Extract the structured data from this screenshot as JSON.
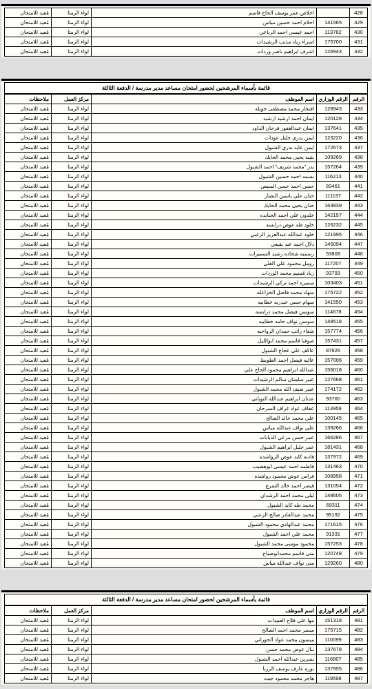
{
  "tableHeaders": {
    "serial": "الرقم",
    "minNo": "الرقم الوزاري",
    "name": "اسم الموظف",
    "center": "مركز العمل",
    "notes": "ملاحظات"
  },
  "centerValue": "لواء الرمثا",
  "notesValue": "مُعيد للامتحان",
  "listTitle": "قائمة بأسماء المرشحين لحضور امتحان مساعد مدير مدرسة / الدفعة الثالثة",
  "sheet1": {
    "rows": [
      {
        "serial": "428",
        "min": "",
        "name": "اخلاص عمر يوسف الحاج قاسم"
      },
      {
        "serial": "429",
        "min": "141565",
        "name": "احلام احمد حسين مياس"
      },
      {
        "serial": "430",
        "min": "113782",
        "name": "احمد عيسى احمد الرباعي"
      },
      {
        "serial": "431",
        "min": "175700",
        "name": "اسراء زياد مذيب الرشيدات"
      },
      {
        "serial": "432",
        "min": "126943",
        "name": "اشرف ابراهيم ناصر وردات"
      }
    ],
    "bottomMark": "432"
  },
  "sheet2": {
    "rows": [
      {
        "serial": "433",
        "min": "128943",
        "name": "افتخار محمد مصطفى خويله"
      },
      {
        "serial": "434",
        "min": "120128",
        "name": "ايمان احمد ارشيد ارشيد"
      },
      {
        "serial": "435",
        "min": "137641",
        "name": "ايمان عبدالغفور فرحان الداود"
      },
      {
        "serial": "436",
        "min": "123220",
        "name": "ايمن بدري خليل عودات"
      },
      {
        "serial": "437",
        "min": "172673",
        "name": "ايمن عايد بدري الشبول"
      },
      {
        "serial": "438",
        "min": "109269",
        "name": "بثينه يحيى محمد الحايك"
      },
      {
        "serial": "439",
        "min": "157264",
        "name": "بدر \"محمد شريف\" احمد الشبول"
      },
      {
        "serial": "440",
        "min": "116213",
        "name": "بسمه احمد حسين الشبول"
      },
      {
        "serial": "441",
        "min": "83461",
        "name": "حسن احمد حسن المنيص"
      },
      {
        "serial": "442",
        "min": "111197",
        "name": "حنان علي ياسين النصار"
      },
      {
        "serial": "443",
        "min": "163839",
        "name": "حنان يحيى محمد الحايك"
      },
      {
        "serial": "444",
        "min": "142157",
        "name": "خلدون علي احمد الجنايده"
      },
      {
        "serial": "445",
        "min": "126232",
        "name": "خلود طه عوض درابسه"
      },
      {
        "serial": "446",
        "min": "121995",
        "name": "خلود عبدالله عبدالعزيز الزعبي"
      },
      {
        "serial": "447",
        "min": "145094",
        "name": "دلال احمد عيد يقيعي"
      },
      {
        "serial": "448",
        "min": "53808",
        "name": "رسميه شحاده رشيد السميرات"
      },
      {
        "serial": "449",
        "min": "117207",
        "name": "رومل محمود علي العلي"
      },
      {
        "serial": "450",
        "min": "93793",
        "name": "زياد قسيم محمد الوردات"
      },
      {
        "serial": "451",
        "min": "103403",
        "name": "سميره احمد تركي الرشيدات"
      },
      {
        "serial": "452",
        "min": "175722",
        "name": "سهاد محمد فاضل الخزاعله"
      },
      {
        "serial": "453",
        "min": "141550",
        "name": "سهام حسن عيدربه خطايبه"
      },
      {
        "serial": "454",
        "min": "114678",
        "name": "سوسن فيصل محمد درابسه"
      },
      {
        "serial": "455",
        "min": "148518",
        "name": "سوسن نواف حامد خطايبه"
      },
      {
        "serial": "456",
        "min": "157774",
        "name": "شفاء راتب حمدان الرواجبه"
      },
      {
        "serial": "457",
        "min": "157431",
        "name": "صوفيا قاسم محمد ابوالليل"
      },
      {
        "serial": "458",
        "min": "87926",
        "name": "عاكف علي عجاج الشبول"
      },
      {
        "serial": "459",
        "min": "157006",
        "name": "عاليه فيصل احمد الطويط"
      },
      {
        "serial": "460",
        "min": "156018",
        "name": "عبدالله ابراهيم محمود الحاج علي"
      },
      {
        "serial": "461",
        "min": "127668",
        "name": "عبير سليمان سالم الرشيدات"
      },
      {
        "serial": "462",
        "min": "174172",
        "name": "عبير ضيف الله محمد الشبول"
      },
      {
        "serial": "463",
        "min": "93760",
        "name": "عدنان ابراهيم عبدالله النوباني"
      },
      {
        "serial": "464",
        "min": "113959",
        "name": "عفاف عواد غراف السرحان"
      },
      {
        "serial": "465",
        "min": "100145",
        "name": "علي محمد خالد الصالح"
      },
      {
        "serial": "466",
        "min": "139266",
        "name": "علي نواف عبدالله مياس"
      },
      {
        "serial": "467",
        "min": "166286",
        "name": "عمر حسن مرعي الذيابات"
      },
      {
        "serial": "468",
        "min": "181431",
        "name": "عمر خليل ابراهيم الشبول"
      },
      {
        "serial": "469",
        "min": "137972",
        "name": "فاديه كايد عوض الرواشده"
      },
      {
        "serial": "470",
        "min": "131463",
        "name": "فاطمه احمد عيسى ابوهضيب"
      },
      {
        "serial": "471",
        "min": "108958",
        "name": "فراس عوض محمود رواشده"
      },
      {
        "serial": "472",
        "min": "131054",
        "name": "قيصر احمد خالد الشرع"
      },
      {
        "serial": "473",
        "min": "148605",
        "name": "ليلى محمد احمد الرشدان"
      },
      {
        "serial": "474",
        "min": "69311",
        "name": "محمد طه كايد الشبول"
      },
      {
        "serial": "475",
        "min": "95192",
        "name": "محمد عبدالقادر صالح الزعبي"
      },
      {
        "serial": "476",
        "min": "171615",
        "name": "محمد عبدالهادي محمود الشبول"
      },
      {
        "serial": "477",
        "min": "91331",
        "name": "محمد علي احمد الشبول"
      },
      {
        "serial": "478",
        "min": "157253",
        "name": "محمود موسى محمد الشبول"
      },
      {
        "serial": "479",
        "min": "120748",
        "name": "منى قاسم محمدابوصياح"
      },
      {
        "serial": "480",
        "min": "129260",
        "name": "منى نواف عبدالله مياس"
      }
    ],
    "bottomMark": "480"
  },
  "sheet3": {
    "rows": [
      {
        "serial": "481",
        "min": "151318",
        "name": "مها علي فلاح العبيدات"
      },
      {
        "serial": "482",
        "min": "175715",
        "name": "ميسر محمد احمد الصالح"
      },
      {
        "serial": "483",
        "min": "110099",
        "name": "ميسون محمد عواد الحوراني"
      },
      {
        "serial": "484",
        "min": "137678",
        "name": "نبال عوض محمد حسن"
      },
      {
        "serial": "485",
        "min": "116807",
        "name": "نسرين عبدالله احمد الشبول"
      },
      {
        "serial": "486",
        "min": "137955",
        "name": "نوره عارف يوسف الزربا"
      },
      {
        "serial": "487",
        "min": "119598",
        "name": "هاجر محمد محمود جيت"
      }
    ]
  }
}
